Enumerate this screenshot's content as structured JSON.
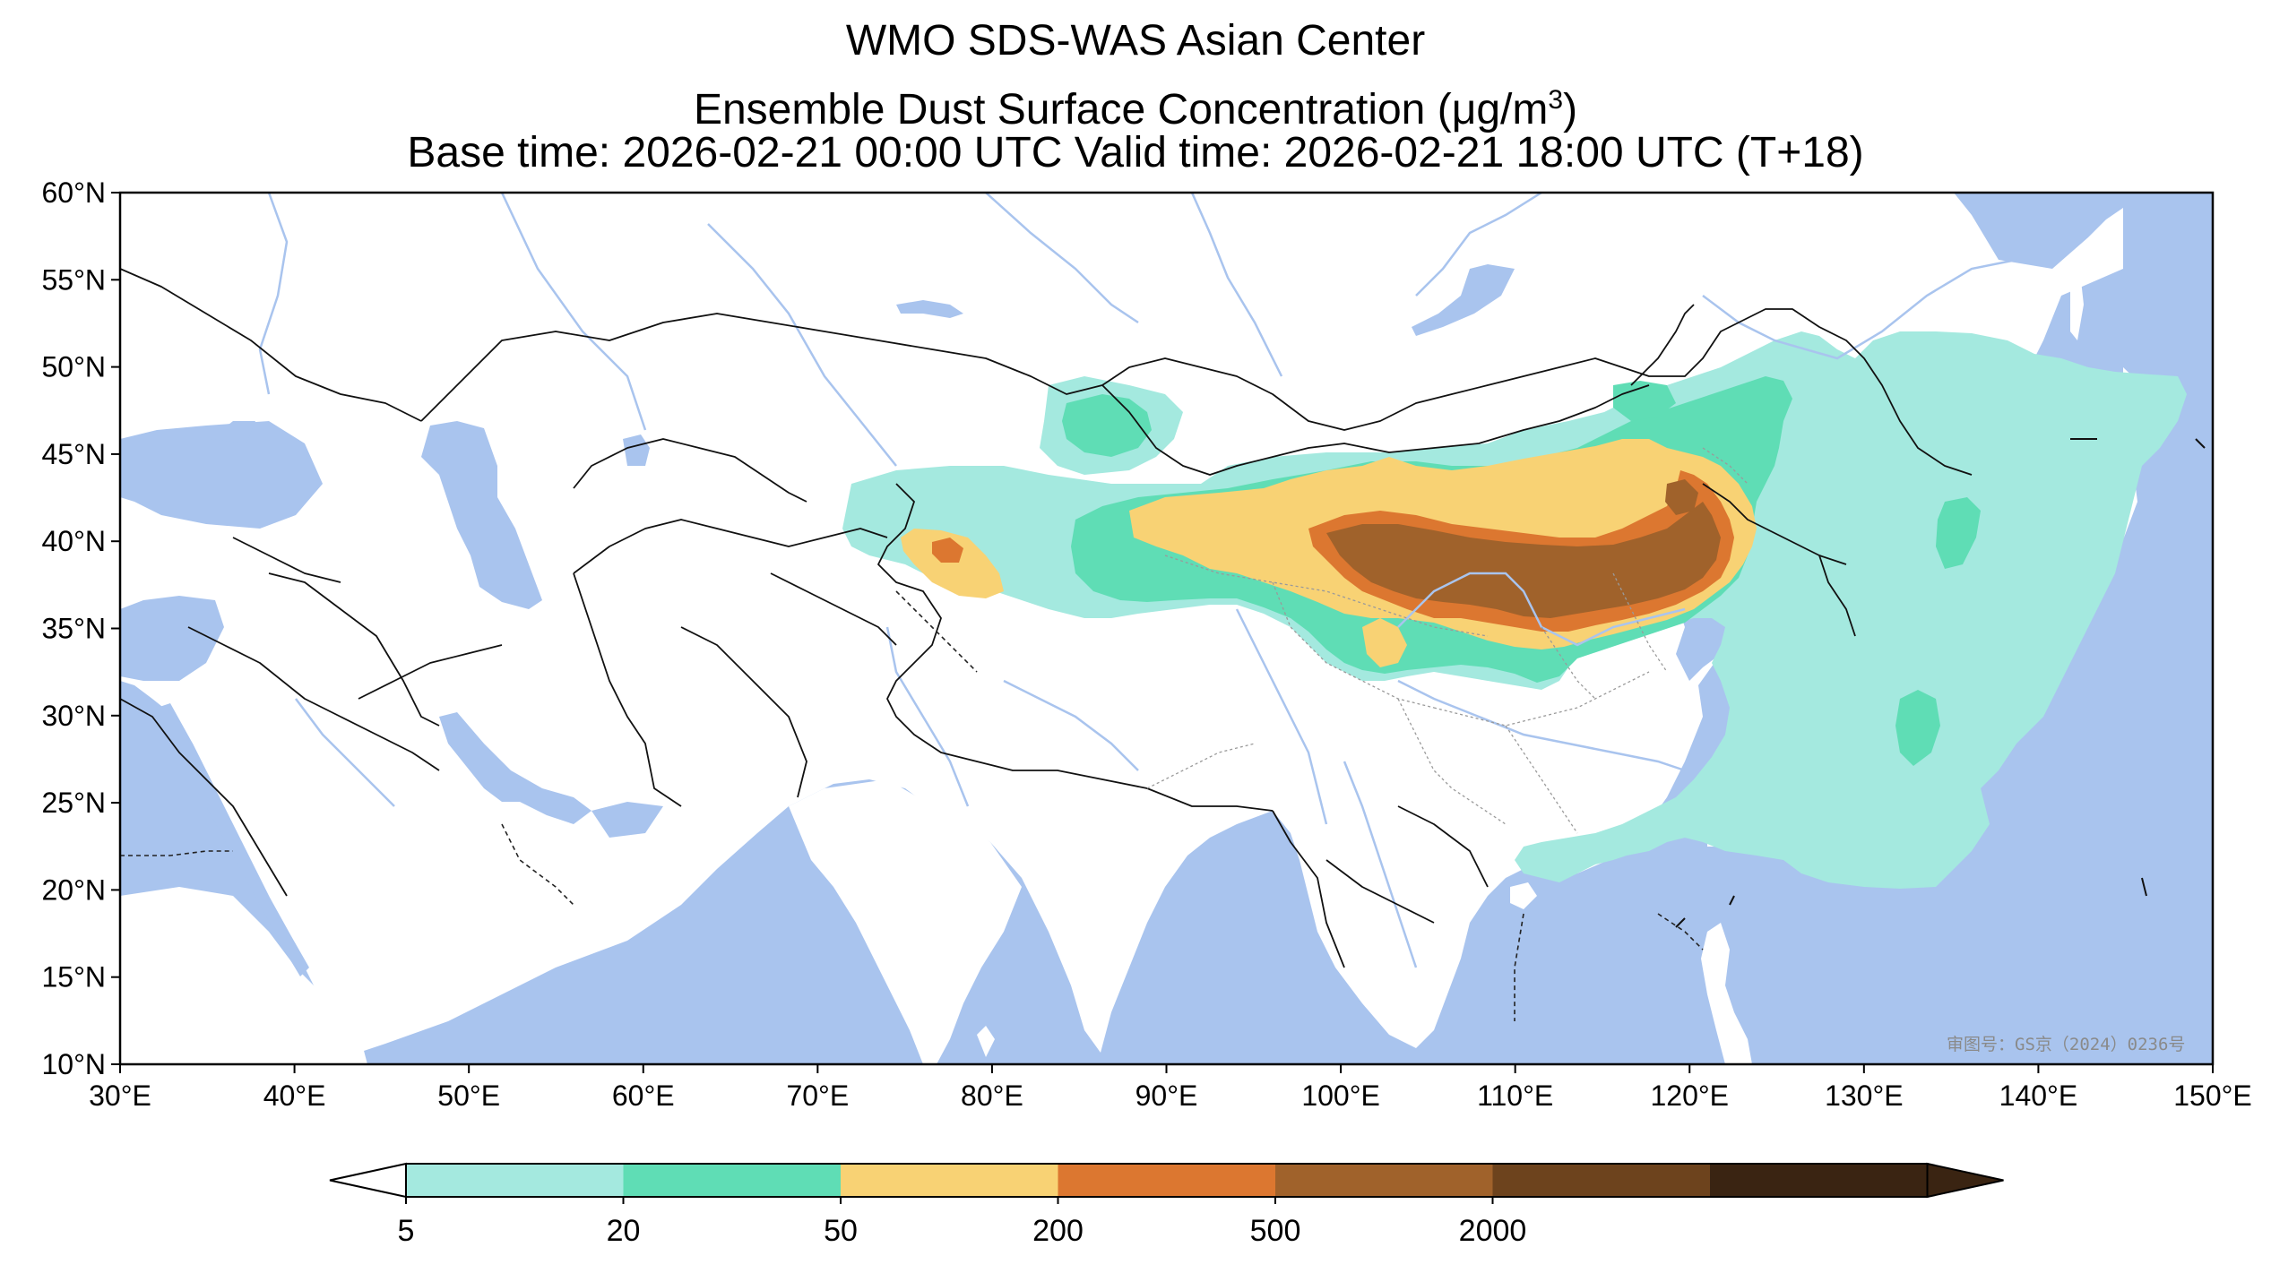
{
  "header": {
    "title_line1": "WMO SDS-WAS Asian Center",
    "title_line2_prefix": "Ensemble Dust Surface Concentration (",
    "title_line2_unit_mu": "μ",
    "title_line2_unit_rest": "g/m",
    "title_line2_sup": "3",
    "title_line2_suffix": ")",
    "title_line3": "Base time: 2026-02-21 00:00 UTC Valid time: 2026-02-21 18:00 UTC (T+18)"
  },
  "map": {
    "lon_range": [
      30,
      150
    ],
    "lat_range": [
      10,
      60
    ],
    "x_ticks": [
      "30°E",
      "40°E",
      "50°E",
      "60°E",
      "70°E",
      "80°E",
      "90°E",
      "100°E",
      "110°E",
      "120°E",
      "130°E",
      "140°E",
      "150°E"
    ],
    "y_ticks": [
      "60°N",
      "55°N",
      "50°N",
      "45°N",
      "40°N",
      "35°N",
      "30°N",
      "25°N",
      "20°N",
      "15°N",
      "10°N"
    ],
    "ocean_color": "#a9c4ee",
    "land_color": "#ffffff",
    "watermark": "审图号：GS京（2024）0236号"
  },
  "colorbar": {
    "levels": [
      "5",
      "20",
      "50",
      "200",
      "500",
      "2000"
    ],
    "colors": [
      "#a4e9df",
      "#5fddb5",
      "#f8d274",
      "#dc7730",
      "#a0622b",
      "#6d431d",
      "#3a2412"
    ],
    "extend": "both"
  },
  "dust_levels": {
    "5": "#a4e9df",
    "20": "#5fddb5",
    "50": "#f8d274",
    "200": "#dc7730",
    "500": "#a0622b"
  }
}
